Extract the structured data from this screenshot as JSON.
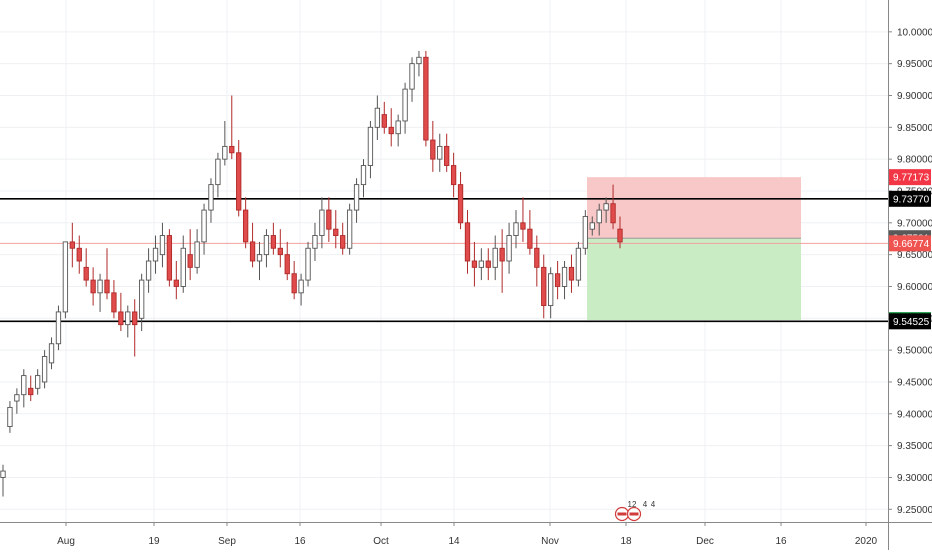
{
  "colors": {
    "up_body": "#ffffff",
    "up_border": "#555555",
    "down_body": "#e04b4b",
    "down_border": "#b02a2a",
    "grid": "#eef0f3",
    "axis_text": "#333333",
    "stop_zone": "#f8c7c7",
    "target_zone": "#c9ecc4",
    "level_line": "#000000",
    "price_line": "#f2a0a0"
  },
  "chart_data": {
    "type": "candlestick",
    "title": "",
    "xlabel": "",
    "ylabel": "",
    "ylim": [
      9.23,
      10.05
    ],
    "x_tick_labels": [
      "Aug",
      "19",
      "Sep",
      "16",
      "Oct",
      "14",
      "Nov",
      "18",
      "Dec",
      "16",
      "2020"
    ],
    "y_tick_labels": [
      "10.00000",
      "9.95000",
      "9.90000",
      "9.85000",
      "9.80000",
      "9.75000",
      "9.70000",
      "9.65000",
      "9.60000",
      "9.55000",
      "9.50000",
      "9.45000",
      "9.40000",
      "9.35000",
      "9.30000",
      "9.25000"
    ],
    "y_ticks": [
      10.0,
      9.95,
      9.9,
      9.85,
      9.8,
      9.75,
      9.7,
      9.65,
      9.6,
      9.55,
      9.5,
      9.45,
      9.4,
      9.35,
      9.3,
      9.25
    ],
    "horizontal_levels": [
      9.7377,
      9.54525
    ],
    "price_line": 9.66774,
    "position": {
      "entry": 9.67581,
      "stop": 9.77173,
      "target": 9.54718
    },
    "price_labels": [
      {
        "text": "9.77173",
        "value": 9.77173,
        "kind": "stop"
      },
      {
        "text": "9.73770",
        "value": 9.7377,
        "kind": "level"
      },
      {
        "text": "9.67581",
        "value": 9.67581,
        "kind": "entry"
      },
      {
        "text": "9.66774",
        "value": 9.66774,
        "kind": "last"
      },
      {
        "text": "9.54718",
        "value": 9.54718,
        "kind": "target"
      },
      {
        "text": "9.54525",
        "value": 9.54525,
        "kind": "level"
      }
    ],
    "candles": [
      [
        9.3,
        9.32,
        9.27,
        9.31
      ],
      [
        9.38,
        9.42,
        9.37,
        9.41
      ],
      [
        9.42,
        9.44,
        9.4,
        9.43
      ],
      [
        9.43,
        9.47,
        9.41,
        9.46
      ],
      [
        9.44,
        9.46,
        9.42,
        9.43
      ],
      [
        9.44,
        9.47,
        9.43,
        9.46
      ],
      [
        9.45,
        9.5,
        9.44,
        9.49
      ],
      [
        9.48,
        9.52,
        9.47,
        9.51
      ],
      [
        9.51,
        9.57,
        9.5,
        9.56
      ],
      [
        9.56,
        9.67,
        9.55,
        9.67
      ],
      [
        9.67,
        9.7,
        9.63,
        9.66
      ],
      [
        9.66,
        9.68,
        9.62,
        9.64
      ],
      [
        9.63,
        9.66,
        9.6,
        9.61
      ],
      [
        9.61,
        9.63,
        9.57,
        9.59
      ],
      [
        9.59,
        9.62,
        9.56,
        9.61
      ],
      [
        9.61,
        9.66,
        9.58,
        9.59
      ],
      [
        9.59,
        9.61,
        9.55,
        9.56
      ],
      [
        9.56,
        9.59,
        9.53,
        9.54
      ],
      [
        9.54,
        9.57,
        9.52,
        9.56
      ],
      [
        9.56,
        9.58,
        9.49,
        9.54
      ],
      [
        9.55,
        9.62,
        9.53,
        9.61
      ],
      [
        9.61,
        9.66,
        9.59,
        9.64
      ],
      [
        9.64,
        9.68,
        9.62,
        9.66
      ],
      [
        9.65,
        9.7,
        9.63,
        9.68
      ],
      [
        9.68,
        9.69,
        9.6,
        9.61
      ],
      [
        9.61,
        9.64,
        9.58,
        9.6
      ],
      [
        9.6,
        9.68,
        9.59,
        9.66
      ],
      [
        9.65,
        9.69,
        9.61,
        9.63
      ],
      [
        9.63,
        9.69,
        9.62,
        9.67
      ],
      [
        9.67,
        9.73,
        9.65,
        9.72
      ],
      [
        9.72,
        9.77,
        9.7,
        9.76
      ],
      [
        9.76,
        9.81,
        9.74,
        9.8
      ],
      [
        9.8,
        9.86,
        9.79,
        9.82
      ],
      [
        9.82,
        9.9,
        9.8,
        9.81
      ],
      [
        9.81,
        9.83,
        9.71,
        9.72
      ],
      [
        9.72,
        9.74,
        9.66,
        9.67
      ],
      [
        9.67,
        9.7,
        9.63,
        9.64
      ],
      [
        9.64,
        9.67,
        9.61,
        9.65
      ],
      [
        9.65,
        9.69,
        9.63,
        9.68
      ],
      [
        9.68,
        9.7,
        9.65,
        9.66
      ],
      [
        9.66,
        9.69,
        9.63,
        9.65
      ],
      [
        9.65,
        9.67,
        9.61,
        9.62
      ],
      [
        9.62,
        9.64,
        9.58,
        9.59
      ],
      [
        9.59,
        9.62,
        9.57,
        9.61
      ],
      [
        9.61,
        9.67,
        9.6,
        9.66
      ],
      [
        9.66,
        9.7,
        9.64,
        9.68
      ],
      [
        9.68,
        9.74,
        9.66,
        9.72
      ],
      [
        9.72,
        9.74,
        9.67,
        9.69
      ],
      [
        9.69,
        9.72,
        9.66,
        9.68
      ],
      [
        9.68,
        9.7,
        9.65,
        9.66
      ],
      [
        9.66,
        9.73,
        9.65,
        9.72
      ],
      [
        9.72,
        9.77,
        9.7,
        9.76
      ],
      [
        9.76,
        9.8,
        9.74,
        9.79
      ],
      [
        9.79,
        9.86,
        9.77,
        9.85
      ],
      [
        9.85,
        9.9,
        9.83,
        9.88
      ],
      [
        9.87,
        9.89,
        9.84,
        9.85
      ],
      [
        9.85,
        9.88,
        9.82,
        9.84
      ],
      [
        9.84,
        9.87,
        9.82,
        9.86
      ],
      [
        9.86,
        9.92,
        9.84,
        9.91
      ],
      [
        9.91,
        9.96,
        9.89,
        9.95
      ],
      [
        9.95,
        9.97,
        9.93,
        9.96
      ],
      [
        9.96,
        9.97,
        9.82,
        9.83
      ],
      [
        9.83,
        9.86,
        9.78,
        9.8
      ],
      [
        9.8,
        9.84,
        9.78,
        9.82
      ],
      [
        9.82,
        9.84,
        9.78,
        9.79
      ],
      [
        9.79,
        9.81,
        9.74,
        9.76
      ],
      [
        9.76,
        9.78,
        9.69,
        9.7
      ],
      [
        9.7,
        9.72,
        9.62,
        9.64
      ],
      [
        9.64,
        9.67,
        9.6,
        9.63
      ],
      [
        9.63,
        9.66,
        9.61,
        9.64
      ],
      [
        9.64,
        9.66,
        9.61,
        9.63
      ],
      [
        9.63,
        9.68,
        9.61,
        9.66
      ],
      [
        9.66,
        9.69,
        9.59,
        9.64
      ],
      [
        9.64,
        9.7,
        9.62,
        9.68
      ],
      [
        9.68,
        9.72,
        9.66,
        9.7
      ],
      [
        9.7,
        9.74,
        9.67,
        9.69
      ],
      [
        9.69,
        9.72,
        9.65,
        9.66
      ],
      [
        9.66,
        9.68,
        9.6,
        9.63
      ],
      [
        9.63,
        9.65,
        9.55,
        9.57
      ],
      [
        9.57,
        9.63,
        9.55,
        9.62
      ],
      [
        9.62,
        9.64,
        9.58,
        9.6
      ],
      [
        9.6,
        9.64,
        9.58,
        9.63
      ],
      [
        9.63,
        9.65,
        9.59,
        9.61
      ],
      [
        9.61,
        9.67,
        9.6,
        9.66
      ],
      [
        9.66,
        9.72,
        9.65,
        9.71
      ],
      [
        9.69,
        9.71,
        9.68,
        9.7
      ],
      [
        9.7,
        9.73,
        9.68,
        9.72
      ],
      [
        9.72,
        9.74,
        9.7,
        9.73
      ],
      [
        9.73,
        9.76,
        9.69,
        9.7
      ],
      [
        9.69,
        9.71,
        9.66,
        9.67
      ]
    ]
  }
}
